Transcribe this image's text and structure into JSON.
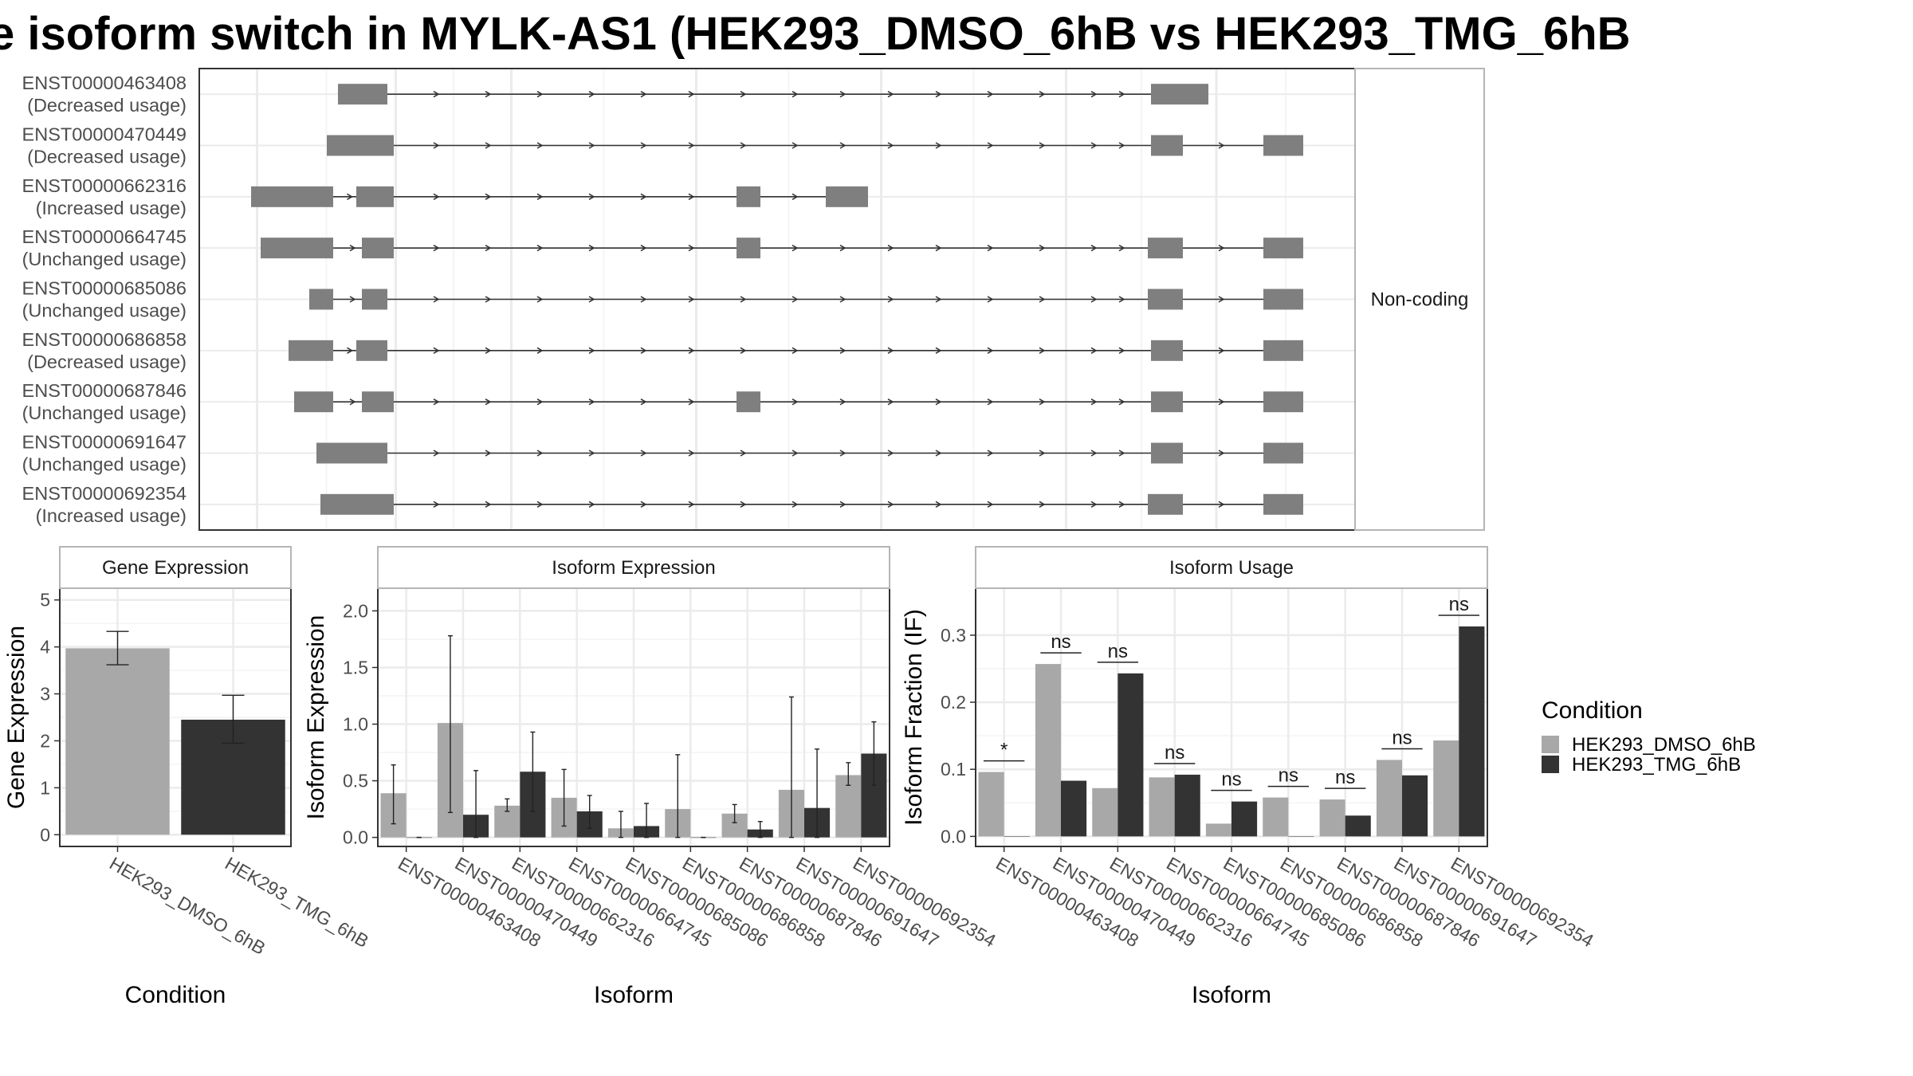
{
  "page_title": "e isoform switch in MYLK-AS1 (HEK293_DMSO_6hB vs HEK293_TMG_6hB",
  "colors": {
    "dmso": "#a8a8a8",
    "tmg": "#333333",
    "exon": "#7f7f7f",
    "panel_border": "#333333",
    "strip_border": "#b5b5b5",
    "grid": "#ebebeb"
  },
  "legend": {
    "title": "Condition",
    "items": [
      {
        "label": "HEK293_DMSO_6hB",
        "color": "#a8a8a8"
      },
      {
        "label": "HEK293_TMG_6hB",
        "color": "#333333"
      }
    ]
  },
  "chart_data": [
    {
      "type": "gene-structure",
      "strip_label": "Non-coding",
      "transcripts": [
        {
          "id": "ENST00000463408",
          "usage": "(Decreased usage)"
        },
        {
          "id": "ENST00000470449",
          "usage": "(Decreased usage)"
        },
        {
          "id": "ENST00000662316",
          "usage": "(Increased usage)"
        },
        {
          "id": "ENST00000664745",
          "usage": "(Unchanged usage)"
        },
        {
          "id": "ENST00000685086",
          "usage": "(Unchanged usage)"
        },
        {
          "id": "ENST00000686858",
          "usage": "(Decreased usage)"
        },
        {
          "id": "ENST00000687846",
          "usage": "(Unchanged usage)"
        },
        {
          "id": "ENST00000691647",
          "usage": "(Unchanged usage)"
        },
        {
          "id": "ENST00000692354",
          "usage": "(Increased usage)"
        }
      ]
    },
    {
      "type": "bar",
      "title": "Gene Expression",
      "xlabel": "Condition",
      "ylabel": "Gene Expression",
      "ylim": [
        -0.25,
        5.25
      ],
      "yticks": [
        "0",
        "1",
        "2",
        "3",
        "4",
        "5"
      ],
      "categories": [
        "HEK293_DMSO_6hB",
        "HEK293_TMG_6hB"
      ],
      "values": [
        3.97,
        2.45
      ],
      "err_low": [
        3.62,
        1.95
      ],
      "err_high": [
        4.33,
        2.97
      ]
    },
    {
      "type": "bar",
      "title": "Isoform Expression",
      "xlabel": "Isoform",
      "ylabel": "Isoform Expression",
      "ylim": [
        -0.08,
        2.2
      ],
      "yticks": [
        "0.0",
        "0.5",
        "1.0",
        "1.5",
        "2.0"
      ],
      "categories": [
        "ENST00000463408",
        "ENST00000470449",
        "ENST00000662316",
        "ENST00000664745",
        "ENST00000685086",
        "ENST00000686858",
        "ENST00000687846",
        "ENST00000691647",
        "ENST00000692354"
      ],
      "series": [
        {
          "name": "HEK293_DMSO_6hB",
          "values": [
            0.39,
            1.01,
            0.28,
            0.35,
            0.08,
            0.25,
            0.21,
            0.42,
            0.55
          ],
          "err_low": [
            0.12,
            0.22,
            0.23,
            0.1,
            0.0,
            0.0,
            0.13,
            0.0,
            0.46
          ],
          "err_high": [
            0.64,
            1.78,
            0.34,
            0.6,
            0.23,
            0.73,
            0.29,
            1.24,
            0.66
          ]
        },
        {
          "name": "HEK293_TMG_6hB",
          "values": [
            0.0,
            0.2,
            0.58,
            0.23,
            0.1,
            0.0,
            0.07,
            0.26,
            0.74
          ],
          "err_low": [
            0.0,
            0.0,
            0.23,
            0.08,
            0.0,
            0.0,
            0.0,
            0.0,
            0.46
          ],
          "err_high": [
            0.0,
            0.59,
            0.93,
            0.37,
            0.3,
            0.0,
            0.14,
            0.78,
            1.02
          ]
        }
      ]
    },
    {
      "type": "bar",
      "title": "Isoform Usage",
      "xlabel": "Isoform",
      "ylabel": "Isoform Fraction (IF)",
      "ylim": [
        -0.015,
        0.37
      ],
      "yticks": [
        "0.0",
        "0.1",
        "0.2",
        "0.3"
      ],
      "categories": [
        "ENST00000463408",
        "ENST00000470449",
        "ENST00000662316",
        "ENST00000664745",
        "ENST00000685086",
        "ENST00000686858",
        "ENST00000687846",
        "ENST00000691647",
        "ENST00000692354"
      ],
      "series": [
        {
          "name": "HEK293_DMSO_6hB",
          "values": [
            0.096,
            0.257,
            0.072,
            0.088,
            0.019,
            0.058,
            0.055,
            0.114,
            0.143
          ]
        },
        {
          "name": "HEK293_TMG_6hB",
          "values": [
            0.0,
            0.083,
            0.243,
            0.092,
            0.052,
            0.0,
            0.031,
            0.091,
            0.313
          ]
        }
      ],
      "annotations": [
        "*",
        "ns",
        "ns",
        "ns",
        "ns",
        "ns",
        "ns",
        "ns",
        "ns"
      ]
    }
  ]
}
